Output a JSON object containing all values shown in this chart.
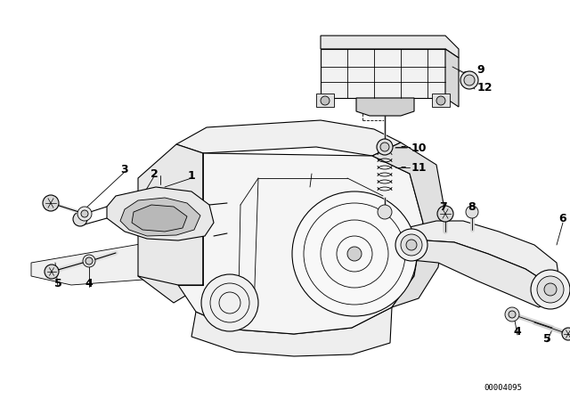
{
  "bg_color": "#ffffff",
  "line_color": "#000000",
  "fig_width": 6.4,
  "fig_height": 4.48,
  "dpi": 100,
  "catalog_num": "00004095",
  "lw_main": 1.0,
  "lw_thin": 0.6,
  "lw_med": 0.8
}
